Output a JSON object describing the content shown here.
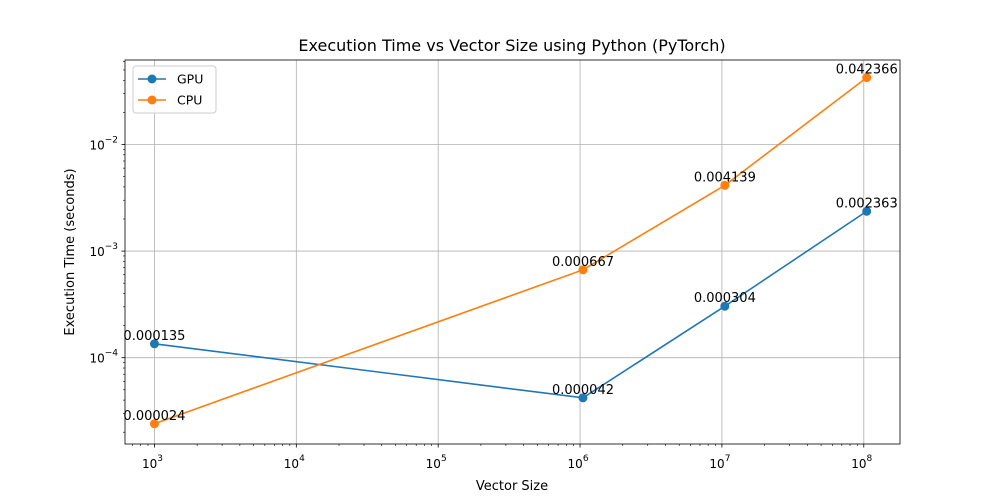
{
  "chart_data": {
    "type": "line",
    "title": "Execution Time vs Vector Size using Python (PyTorch)",
    "xlabel": "Vector Size",
    "ylabel": "Execution Time (seconds)",
    "xscale": "log",
    "yscale": "log",
    "xlim": [
      620,
      180000000
    ],
    "ylim": [
      1.55e-05,
      0.062
    ],
    "grid": true,
    "legend_position": "top-left",
    "x_ticks": [
      {
        "value": 1000,
        "base": "10",
        "exp": "3"
      },
      {
        "value": 10000,
        "base": "10",
        "exp": "4"
      },
      {
        "value": 100000,
        "base": "10",
        "exp": "5"
      },
      {
        "value": 1000000,
        "base": "10",
        "exp": "6"
      },
      {
        "value": 10000000,
        "base": "10",
        "exp": "7"
      },
      {
        "value": 100000000,
        "base": "10",
        "exp": "8"
      }
    ],
    "y_ticks": [
      {
        "value": 0.0001,
        "base": "10",
        "exp": "−4"
      },
      {
        "value": 0.001,
        "base": "10",
        "exp": "−3"
      },
      {
        "value": 0.01,
        "base": "10",
        "exp": "−2"
      }
    ],
    "x": [
      1000,
      1048576,
      10485760,
      104857600
    ],
    "series": [
      {
        "name": "GPU",
        "color": "#1f77b4",
        "values": [
          0.000135,
          4.2e-05,
          0.000304,
          0.002363
        ],
        "labels": [
          "0.000135",
          "0.000042",
          "0.000304",
          "0.002363"
        ]
      },
      {
        "name": "CPU",
        "color": "#ff7f0e",
        "values": [
          2.4e-05,
          0.000667,
          0.004139,
          0.042366
        ],
        "labels": [
          "0.000024",
          "0.000667",
          "0.004139",
          "0.042366"
        ]
      }
    ]
  }
}
